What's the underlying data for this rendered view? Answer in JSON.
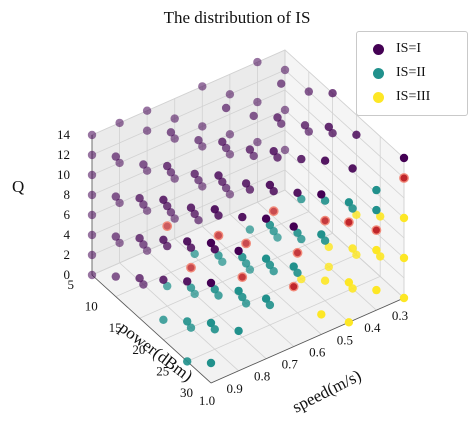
{
  "chart_data": {
    "type": "scatter",
    "title": "The distribution of IS",
    "xlabel": "speed(m/s)",
    "ylabel": "power(dBm)",
    "zlabel": "Q",
    "x_ticks": [
      "0.3",
      "0.4",
      "0.5",
      "0.6",
      "0.7",
      "0.8",
      "0.9",
      "1.0"
    ],
    "y_ticks": [
      "5",
      "10",
      "15",
      "20",
      "25",
      "30"
    ],
    "z_ticks": [
      "0",
      "2",
      "4",
      "6",
      "8",
      "10",
      "12",
      "14"
    ],
    "xlim": [
      0.3,
      1.0
    ],
    "ylim": [
      5,
      30
    ],
    "zlim": [
      0,
      14
    ],
    "grid": true,
    "legend_position": "top-right",
    "series": [
      {
        "name": "IS=I",
        "color": "#440154",
        "points": [
          [
            1.0,
            5,
            14
          ],
          [
            1.0,
            5,
            12
          ],
          [
            1.0,
            5,
            10
          ],
          [
            1.0,
            5,
            8
          ],
          [
            1.0,
            5,
            6
          ],
          [
            1.0,
            5,
            4
          ],
          [
            1.0,
            5,
            2
          ],
          [
            1.0,
            5,
            0
          ],
          [
            0.9,
            5,
            14
          ],
          [
            0.9,
            5,
            10
          ],
          [
            0.9,
            5,
            6
          ],
          [
            0.9,
            5,
            2
          ],
          [
            0.8,
            5,
            14
          ],
          [
            0.8,
            5,
            12
          ],
          [
            0.8,
            5,
            8
          ],
          [
            0.8,
            5,
            4
          ],
          [
            0.8,
            5,
            0
          ],
          [
            0.7,
            5,
            12
          ],
          [
            0.7,
            5,
            10
          ],
          [
            0.7,
            5,
            6
          ],
          [
            0.7,
            5,
            2
          ],
          [
            0.6,
            5,
            14
          ],
          [
            0.6,
            5,
            10
          ],
          [
            0.6,
            5,
            8
          ],
          [
            0.6,
            5,
            4
          ],
          [
            0.5,
            5,
            12
          ],
          [
            0.5,
            5,
            8
          ],
          [
            0.5,
            5,
            6
          ],
          [
            0.5,
            5,
            2
          ],
          [
            0.4,
            5,
            14
          ],
          [
            0.4,
            5,
            10
          ],
          [
            0.4,
            5,
            6
          ],
          [
            0.3,
            5,
            12
          ],
          [
            0.3,
            5,
            8
          ],
          [
            0.3,
            5,
            4
          ],
          [
            1.0,
            10,
            14
          ],
          [
            1.0,
            10,
            10
          ],
          [
            1.0,
            10,
            6
          ],
          [
            1.0,
            10,
            2
          ],
          [
            0.9,
            10,
            12
          ],
          [
            0.9,
            10,
            8
          ],
          [
            0.9,
            10,
            4
          ],
          [
            0.9,
            10,
            0
          ],
          [
            0.8,
            10,
            14
          ],
          [
            0.8,
            10,
            10
          ],
          [
            0.8,
            10,
            6
          ],
          [
            0.7,
            10,
            12
          ],
          [
            0.7,
            10,
            8
          ],
          [
            0.7,
            10,
            4
          ],
          [
            0.6,
            10,
            14
          ],
          [
            0.6,
            10,
            10
          ],
          [
            0.6,
            10,
            6
          ],
          [
            0.5,
            10,
            12
          ],
          [
            0.5,
            10,
            8
          ],
          [
            0.4,
            10,
            14
          ],
          [
            0.4,
            10,
            10
          ],
          [
            0.3,
            10,
            12
          ],
          [
            0.3,
            10,
            8
          ],
          [
            1.0,
            15,
            12
          ],
          [
            1.0,
            15,
            8
          ],
          [
            1.0,
            15,
            4
          ],
          [
            0.9,
            15,
            14
          ],
          [
            0.9,
            15,
            10
          ],
          [
            0.9,
            15,
            6
          ],
          [
            0.8,
            15,
            12
          ],
          [
            0.8,
            15,
            8
          ],
          [
            0.7,
            15,
            14
          ],
          [
            0.7,
            15,
            10
          ],
          [
            0.6,
            15,
            12
          ],
          [
            0.6,
            15,
            8
          ],
          [
            0.5,
            15,
            14
          ],
          [
            0.5,
            15,
            10
          ],
          [
            0.4,
            15,
            12
          ],
          [
            0.3,
            15,
            14
          ],
          [
            0.3,
            15,
            10
          ],
          [
            1.0,
            20,
            14
          ],
          [
            1.0,
            20,
            10
          ],
          [
            1.0,
            20,
            6
          ],
          [
            0.9,
            20,
            12
          ],
          [
            0.9,
            20,
            8
          ],
          [
            0.8,
            20,
            14
          ],
          [
            0.8,
            20,
            10
          ],
          [
            0.7,
            20,
            12
          ],
          [
            0.6,
            20,
            14
          ],
          [
            0.6,
            20,
            10
          ],
          [
            0.5,
            20,
            12
          ],
          [
            0.4,
            20,
            14
          ],
          [
            0.3,
            20,
            12
          ],
          [
            1.0,
            25,
            12
          ],
          [
            1.0,
            25,
            8
          ],
          [
            0.9,
            25,
            14
          ],
          [
            0.9,
            25,
            10
          ],
          [
            0.8,
            25,
            12
          ],
          [
            0.7,
            25,
            14
          ],
          [
            0.6,
            25,
            12
          ],
          [
            0.5,
            25,
            14
          ],
          [
            0.4,
            25,
            12
          ],
          [
            1.0,
            30,
            14
          ],
          [
            1.0,
            30,
            10
          ],
          [
            0.9,
            30,
            12
          ],
          [
            0.8,
            30,
            14
          ],
          [
            0.7,
            30,
            12
          ],
          [
            0.6,
            30,
            14
          ],
          [
            0.3,
            30,
            14
          ]
        ]
      },
      {
        "name": "IS=II",
        "color": "#21918c",
        "points": [
          [
            0.9,
            15,
            2
          ],
          [
            0.8,
            15,
            4
          ],
          [
            0.8,
            15,
            0
          ],
          [
            0.7,
            15,
            2
          ],
          [
            0.6,
            15,
            4
          ],
          [
            0.6,
            15,
            0
          ],
          [
            0.5,
            15,
            2
          ],
          [
            1.0,
            20,
            2
          ],
          [
            0.9,
            20,
            4
          ],
          [
            0.9,
            20,
            0
          ],
          [
            0.8,
            20,
            2
          ],
          [
            0.8,
            20,
            6
          ],
          [
            0.7,
            20,
            4
          ],
          [
            0.7,
            20,
            0
          ],
          [
            0.6,
            20,
            2
          ],
          [
            0.6,
            20,
            6
          ],
          [
            0.5,
            20,
            4
          ],
          [
            0.5,
            20,
            8
          ],
          [
            1.0,
            25,
            4
          ],
          [
            1.0,
            25,
            0
          ],
          [
            0.9,
            25,
            2
          ],
          [
            0.9,
            25,
            6
          ],
          [
            0.8,
            25,
            4
          ],
          [
            0.8,
            25,
            8
          ],
          [
            0.7,
            25,
            2
          ],
          [
            0.7,
            25,
            6
          ],
          [
            0.7,
            25,
            10
          ],
          [
            0.6,
            25,
            4
          ],
          [
            0.6,
            25,
            8
          ],
          [
            0.5,
            25,
            6
          ],
          [
            0.5,
            25,
            10
          ],
          [
            0.4,
            25,
            8
          ],
          [
            1.0,
            30,
            6
          ],
          [
            1.0,
            30,
            2
          ],
          [
            0.9,
            30,
            4
          ],
          [
            0.9,
            30,
            8
          ],
          [
            0.8,
            30,
            6
          ],
          [
            0.8,
            30,
            10
          ],
          [
            0.7,
            30,
            8
          ],
          [
            0.6,
            30,
            10
          ],
          [
            0.5,
            30,
            12
          ],
          [
            0.4,
            30,
            10
          ],
          [
            0.4,
            30,
            12
          ]
        ]
      },
      {
        "name": "IS=III",
        "color": "#fde725",
        "points": [
          [
            0.5,
            20,
            0
          ],
          [
            0.4,
            20,
            2
          ],
          [
            0.4,
            20,
            0
          ],
          [
            0.3,
            20,
            4
          ],
          [
            0.3,
            20,
            0
          ],
          [
            0.5,
            25,
            2
          ],
          [
            0.4,
            25,
            4
          ],
          [
            0.4,
            25,
            0
          ],
          [
            0.3,
            25,
            6
          ],
          [
            0.3,
            25,
            2
          ],
          [
            0.6,
            30,
            2
          ],
          [
            0.5,
            30,
            4
          ],
          [
            0.5,
            30,
            0
          ],
          [
            0.4,
            30,
            6
          ],
          [
            0.4,
            30,
            2
          ],
          [
            0.3,
            30,
            8
          ],
          [
            0.3,
            30,
            4
          ],
          [
            0.3,
            30,
            0
          ]
        ]
      },
      {
        "color": "#c0262b",
        "points": [
          [
            0.9,
            15,
            8
          ],
          [
            0.9,
            20,
            6
          ],
          [
            0.8,
            20,
            8
          ],
          [
            0.7,
            20,
            6
          ],
          [
            0.6,
            20,
            8
          ],
          [
            0.8,
            25,
            6
          ],
          [
            0.6,
            25,
            6
          ],
          [
            0.5,
            25,
            8
          ],
          [
            0.7,
            30,
            6
          ],
          [
            0.5,
            30,
            10
          ],
          [
            0.4,
            30,
            8
          ],
          [
            0.3,
            30,
            12
          ]
        ]
      }
    ]
  }
}
